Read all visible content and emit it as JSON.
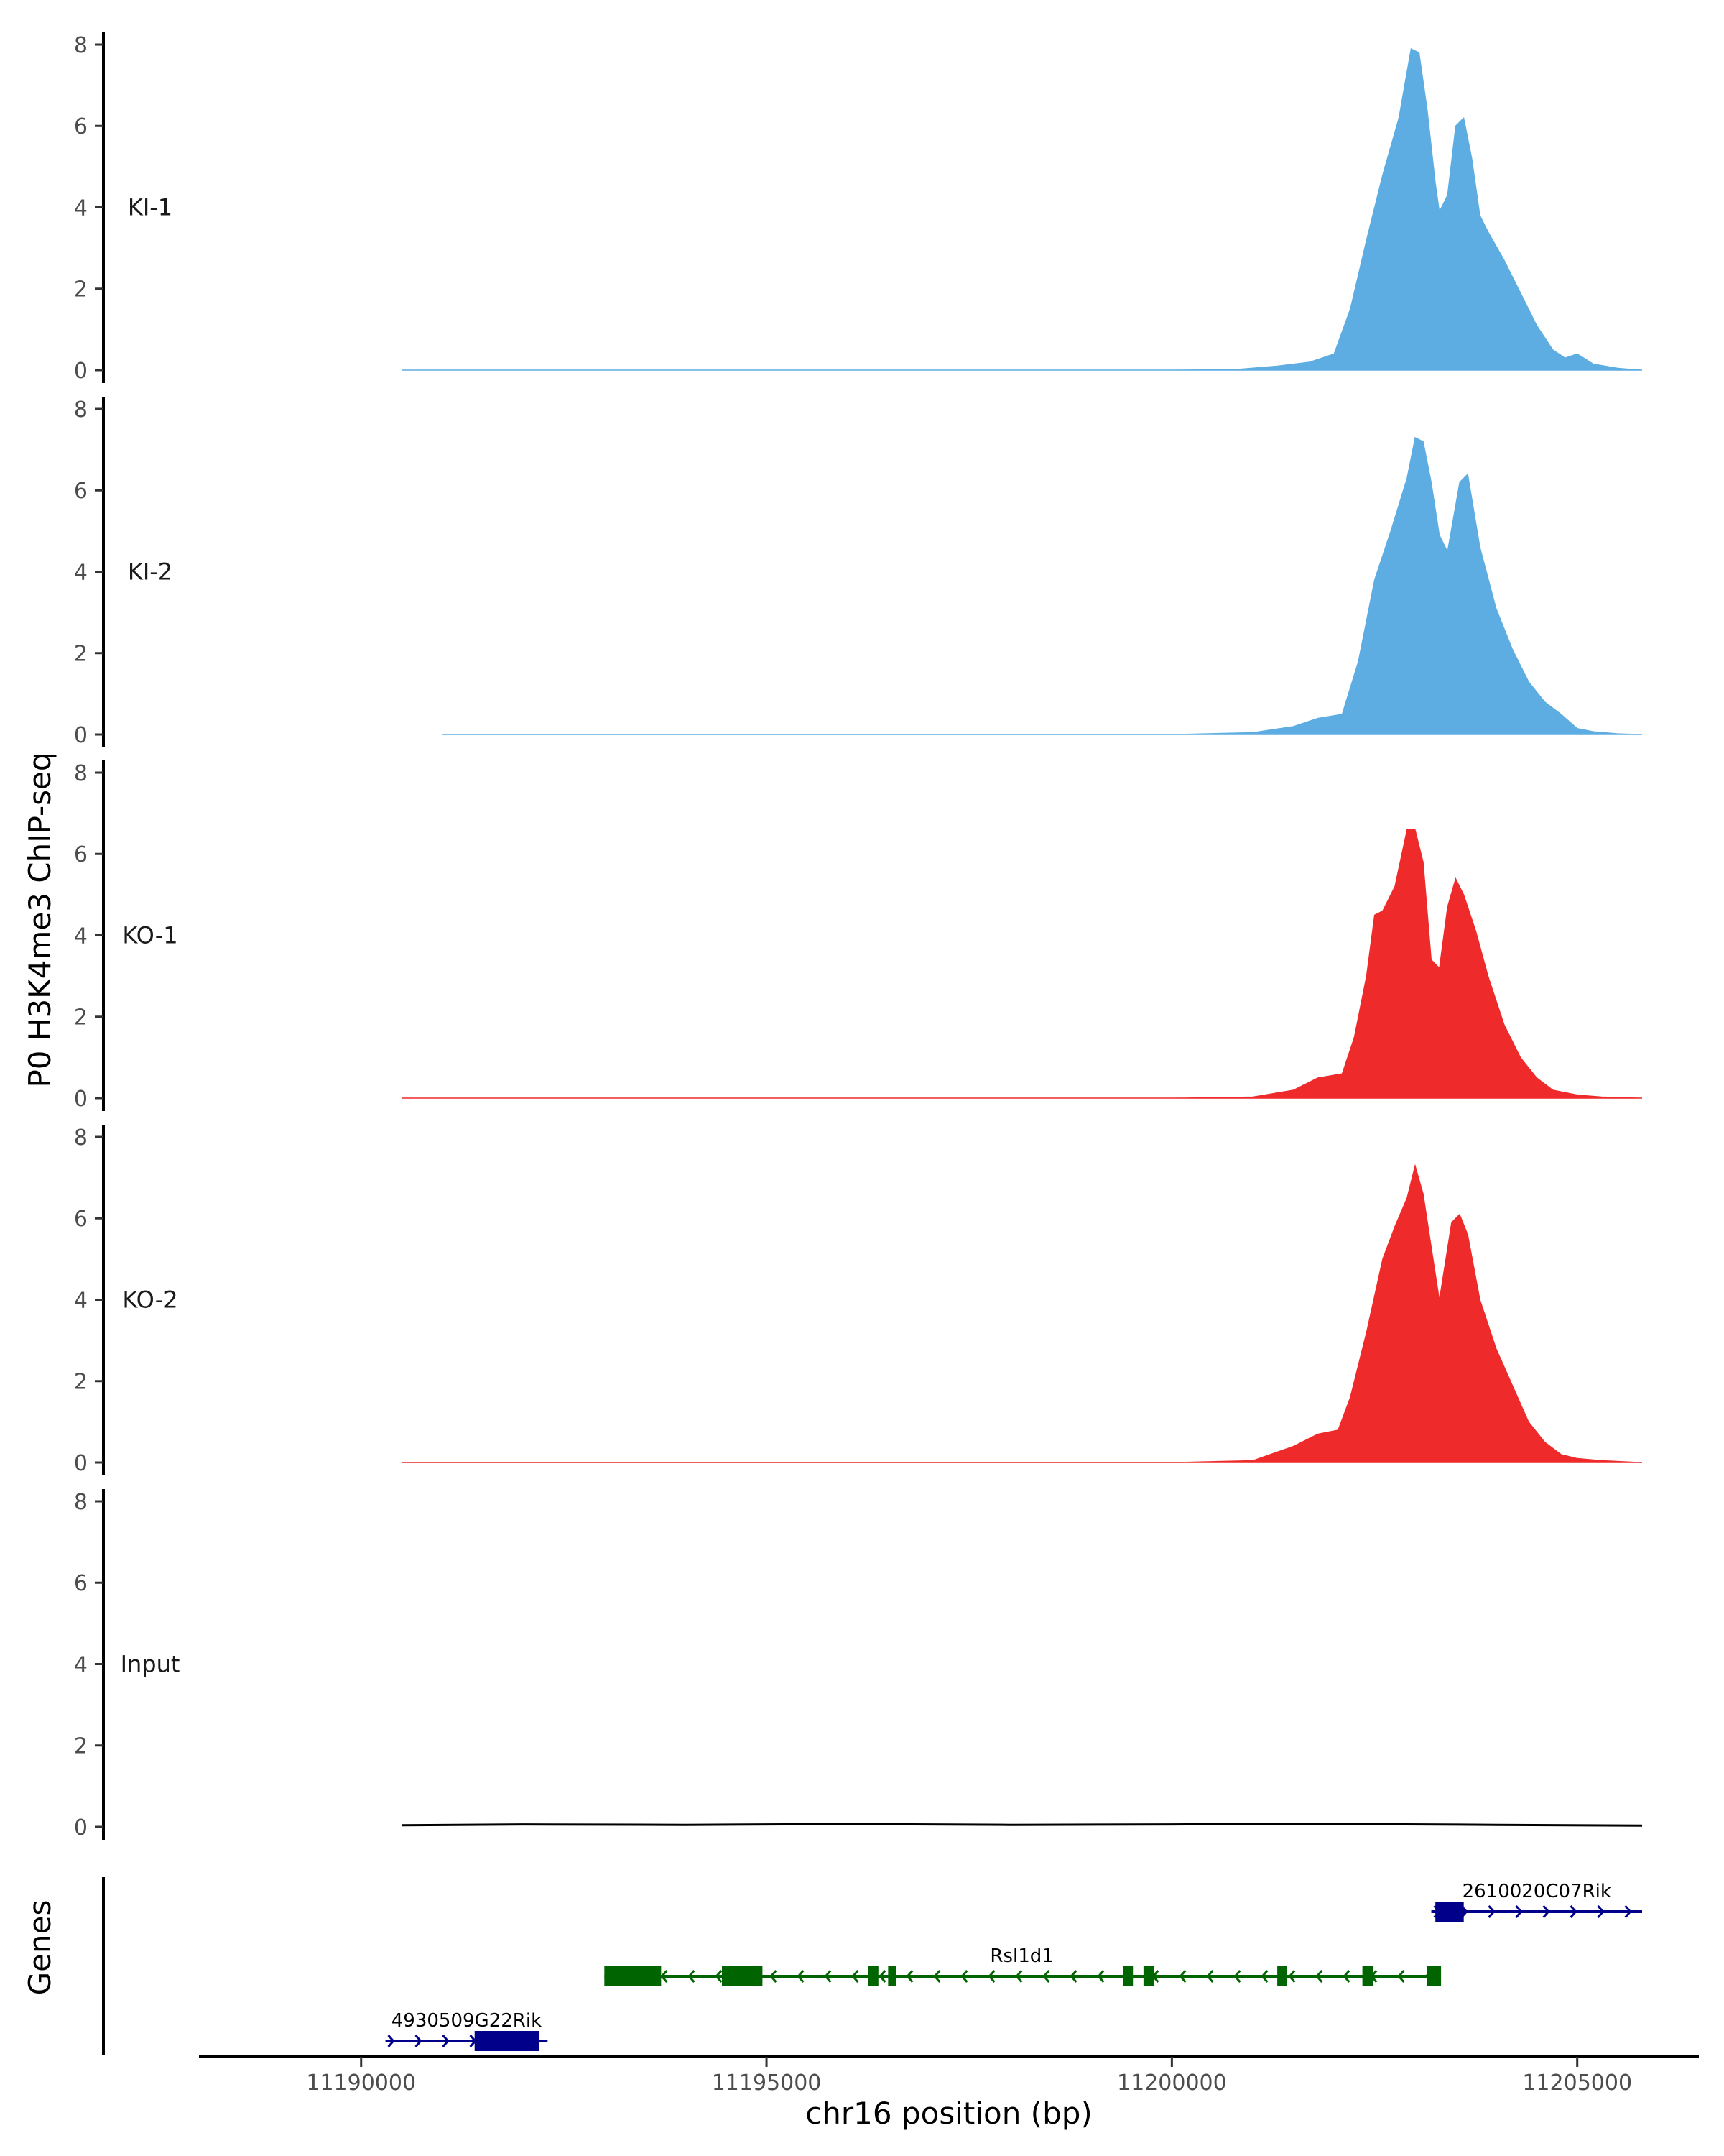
{
  "chart_data": {
    "type": "area",
    "region": "chr16",
    "xlabel": "chr16 position (bp)",
    "ylabel": "P0 H3K4me3 ChIP-seq",
    "genes_label": "Genes",
    "xlim": [
      11188000,
      11206500
    ],
    "ylim": [
      0,
      8.3
    ],
    "x_ticks": [
      11190000,
      11195000,
      11200000,
      11205000
    ],
    "x_tick_labels": [
      "11190000",
      "11195000",
      "11200000",
      "11205000"
    ],
    "y_ticks": [
      0,
      2,
      4,
      6,
      8
    ],
    "y_tick_labels": [
      "0",
      "2",
      "4",
      "6",
      "8"
    ],
    "colors": {
      "KI": "#5dade2",
      "KO": "#ee2a2a",
      "Input": "#000000",
      "gene_plus": "#00008b",
      "gene_minus": "#006400",
      "axis": "#000000"
    },
    "tracks": [
      {
        "name": "KI-1",
        "color": "#5dade2",
        "x": [
          11190500,
          11200000,
          11200800,
          11201300,
          11201700,
          11202000,
          11202200,
          11202400,
          11202600,
          11202800,
          11202950,
          11203050,
          11203150,
          11203250,
          11203300,
          11203400,
          11203500,
          11203600,
          11203700,
          11203800,
          11203900,
          11204100,
          11204300,
          11204500,
          11204700,
          11204850,
          11205000,
          11205200,
          11205500,
          11205800
        ],
        "values": [
          0,
          0,
          0.02,
          0.1,
          0.2,
          0.4,
          1.5,
          3.2,
          4.8,
          6.2,
          7.9,
          7.8,
          6.4,
          4.6,
          3.9,
          4.3,
          6.0,
          6.2,
          5.2,
          3.8,
          3.4,
          2.7,
          1.9,
          1.1,
          0.5,
          0.3,
          0.4,
          0.15,
          0.05,
          0
        ]
      },
      {
        "name": "KI-2",
        "color": "#5dade2",
        "x": [
          11191000,
          11200000,
          11201000,
          11201500,
          11201800,
          11202100,
          11202300,
          11202500,
          11202700,
          11202900,
          11203000,
          11203100,
          11203200,
          11203300,
          11203400,
          11203550,
          11203650,
          11203800,
          11204000,
          11204200,
          11204400,
          11204600,
          11204800,
          11205000,
          11205200,
          11205500,
          11205800
        ],
        "values": [
          0,
          0,
          0.05,
          0.2,
          0.4,
          0.5,
          1.8,
          3.8,
          5.0,
          6.3,
          7.3,
          7.2,
          6.2,
          4.9,
          4.5,
          6.2,
          6.4,
          4.6,
          3.1,
          2.1,
          1.3,
          0.8,
          0.5,
          0.15,
          0.07,
          0.02,
          0
        ]
      },
      {
        "name": "KO-1",
        "color": "#ee2a2a",
        "x": [
          11190500,
          11200000,
          11201000,
          11201500,
          11201800,
          11202100,
          11202250,
          11202400,
          11202500,
          11202600,
          11202750,
          11202900,
          11203000,
          11203100,
          11203200,
          11203300,
          11203400,
          11203500,
          11203600,
          11203750,
          11203900,
          11204100,
          11204300,
          11204500,
          11204700,
          11205000,
          11205300,
          11205800
        ],
        "values": [
          0,
          0,
          0.03,
          0.2,
          0.5,
          0.6,
          1.5,
          3.0,
          4.5,
          4.6,
          5.2,
          6.6,
          6.6,
          5.8,
          3.4,
          3.2,
          4.7,
          5.4,
          5.0,
          4.1,
          3.0,
          1.8,
          1.0,
          0.5,
          0.2,
          0.08,
          0.03,
          0
        ]
      },
      {
        "name": "KO-2",
        "color": "#ee2a2a",
        "x": [
          11190500,
          11200000,
          11201000,
          11201500,
          11201800,
          11202050,
          11202200,
          11202400,
          11202600,
          11202750,
          11202900,
          11203000,
          11203100,
          11203200,
          11203300,
          11203450,
          11203550,
          11203650,
          11203800,
          11204000,
          11204200,
          11204400,
          11204600,
          11204800,
          11205000,
          11205300,
          11205800
        ],
        "values": [
          0,
          0,
          0.05,
          0.4,
          0.7,
          0.8,
          1.6,
          3.2,
          5.0,
          5.8,
          6.5,
          7.3,
          6.6,
          5.3,
          4.0,
          5.9,
          6.1,
          5.6,
          4.0,
          2.8,
          1.9,
          1.0,
          0.5,
          0.2,
          0.1,
          0.05,
          0
        ]
      },
      {
        "name": "Input",
        "color": "#000000",
        "x": [
          11190500,
          11192000,
          11194000,
          11196000,
          11198000,
          11200000,
          11202000,
          11204000,
          11205800
        ],
        "values": [
          0.04,
          0.06,
          0.05,
          0.07,
          0.05,
          0.06,
          0.07,
          0.05,
          0.03
        ]
      }
    ],
    "genes": [
      {
        "name": "2610020C07Rik",
        "strand": "+",
        "color": "#00008b",
        "row": 1,
        "start": 11203200,
        "end": 11205800,
        "exons": [
          [
            11203250,
            11203600
          ]
        ]
      },
      {
        "name": "Rsl1d1",
        "strand": "-",
        "color": "#006400",
        "row": 2,
        "start": 11193000,
        "end": 11203300,
        "exons": [
          [
            11193000,
            11193700
          ],
          [
            11194450,
            11194950
          ],
          [
            11196250,
            11196380
          ],
          [
            11196500,
            11196600
          ],
          [
            11199400,
            11199520
          ],
          [
            11199650,
            11199780
          ],
          [
            11201300,
            11201420
          ],
          [
            11202350,
            11202480
          ],
          [
            11203150,
            11203320
          ]
        ]
      },
      {
        "name": "4930509G22Rik",
        "strand": "+",
        "color": "#00008b",
        "row": 3,
        "start": 11190300,
        "end": 11192300,
        "exons": [
          [
            11191400,
            11192200
          ]
        ]
      }
    ]
  }
}
